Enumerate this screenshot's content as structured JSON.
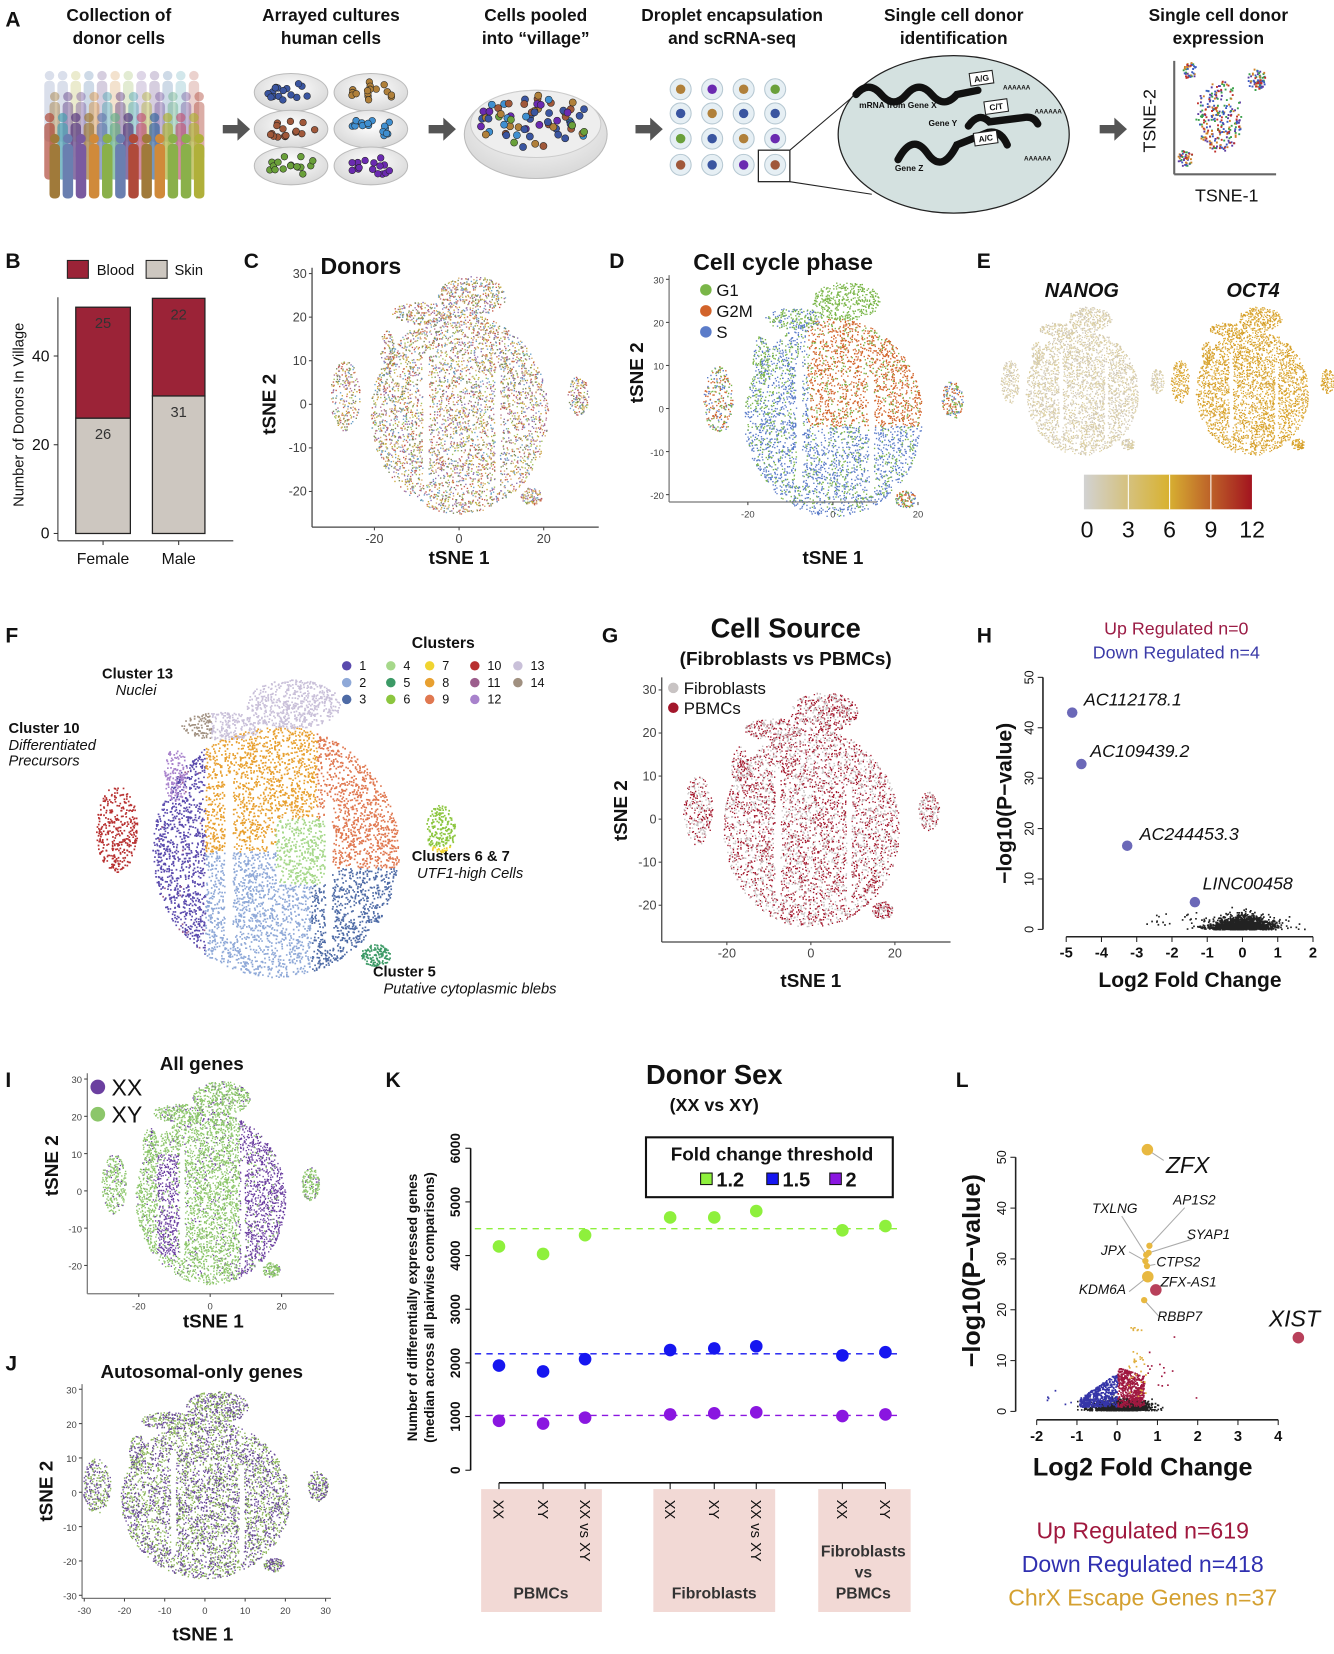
{
  "panel_labels": {
    "A": "A",
    "B": "B",
    "C": "C",
    "D": "D",
    "E": "E",
    "F": "F",
    "G": "G",
    "H": "H",
    "I": "I",
    "J": "J",
    "K": "K",
    "L": "L"
  },
  "panel_a": {
    "steps": [
      [
        "Collection of",
        "donor cells"
      ],
      [
        "Arrayed cultures",
        "human cells"
      ],
      [
        "Cells pooled",
        "into “village”"
      ],
      [
        "Droplet encapsulation",
        "and scRNA-seq"
      ],
      [
        "Single cell donor",
        "identification"
      ],
      [
        "Single cell donor",
        "expression"
      ]
    ],
    "gene_labels": [
      "mRNA from Gene X",
      "Gene Y",
      "Gene Z"
    ],
    "alleles": [
      "A/G",
      "C/T",
      "A/C"
    ],
    "polya": "AAAAAA",
    "tsne_xlabel": "TSNE-1",
    "tsne_ylabel": "TSNE-2"
  },
  "chart_data": [
    {
      "panel": "B",
      "type": "bar",
      "stacked": true,
      "categories": [
        "Female",
        "Male"
      ],
      "series": [
        {
          "name": "Blood",
          "values": [
            25,
            22
          ],
          "color": "#9b2337"
        },
        {
          "name": "Skin",
          "values": [
            26,
            31
          ],
          "color": "#cdc7c0"
        }
      ],
      "ylabel": "Number of Donors In Village",
      "yticks": [
        0,
        20,
        40
      ],
      "ylim": [
        0,
        53
      ],
      "legend": "top"
    },
    {
      "panel": "C",
      "type": "scatter",
      "title": "Donors",
      "xlabel": "tSNE 1",
      "ylabel": "tSNE 2",
      "xticks": [
        -20,
        0,
        20
      ],
      "yticks": [
        -20,
        -10,
        0,
        10,
        20,
        30
      ],
      "colors": [
        "#c9a93a",
        "#8a6fb0",
        "#a4c25a",
        "#c65b4a",
        "#6aa0c8",
        "#d8b070",
        "#7a8a5a",
        "#b07090"
      ]
    },
    {
      "panel": "D",
      "type": "scatter",
      "title": "Cell cycle phase",
      "xlabel": "tSNE 1",
      "ylabel": "tSNE 2",
      "xticks": [
        -20,
        0,
        20
      ],
      "yticks": [
        -20,
        -10,
        0,
        10,
        20,
        30
      ],
      "legend": [
        {
          "name": "G1",
          "color": "#7ab648"
        },
        {
          "name": "G2M",
          "color": "#d2632a"
        },
        {
          "name": "S",
          "color": "#5b7cc9"
        }
      ]
    },
    {
      "panel": "E",
      "type": "scatter",
      "genes": [
        "NANOG",
        "OCT4"
      ],
      "colorbar": {
        "ticks": [
          0,
          3,
          6,
          9,
          12
        ],
        "colors": [
          "#d2d2d2",
          "#d8b232",
          "#a3141f"
        ]
      }
    },
    {
      "panel": "F",
      "type": "scatter",
      "title": "Clusters",
      "legend": [
        {
          "name": "1",
          "color": "#5a4aad"
        },
        {
          "name": "2",
          "color": "#8fa9d8"
        },
        {
          "name": "3",
          "color": "#4e6ba6"
        },
        {
          "name": "4",
          "color": "#a6d88a"
        },
        {
          "name": "5",
          "color": "#3c9a66"
        },
        {
          "name": "6",
          "color": "#8cc63f"
        },
        {
          "name": "7",
          "color": "#f0d430"
        },
        {
          "name": "8",
          "color": "#e8a030"
        },
        {
          "name": "9",
          "color": "#e07850"
        },
        {
          "name": "10",
          "color": "#b83030"
        },
        {
          "name": "11",
          "color": "#9c5e8c"
        },
        {
          "name": "12",
          "color": "#a882cc"
        },
        {
          "name": "13",
          "color": "#c9c0d9"
        },
        {
          "name": "14",
          "color": "#a09080"
        }
      ],
      "annotations": [
        {
          "title": "Cluster 13",
          "lines": [
            "Nuclei"
          ]
        },
        {
          "title": "Cluster 10",
          "lines": [
            "Differentiated",
            "Precursors"
          ]
        },
        {
          "title": "Clusters 6 & 7",
          "lines": [
            "UTF1-high Cells"
          ]
        },
        {
          "title": "Cluster 5",
          "lines": [
            "Putative cytoplasmic blebs"
          ]
        }
      ]
    },
    {
      "panel": "G",
      "type": "scatter",
      "title": "Cell Source",
      "subtitle": "(Fibroblasts vs PBMCs)",
      "xlabel": "tSNE 1",
      "ylabel": "tSNE 2",
      "xticks": [
        -20,
        0,
        20
      ],
      "yticks": [
        -20,
        -10,
        0,
        10,
        20,
        30
      ],
      "legend": [
        {
          "name": "Fibroblasts",
          "color": "#c8c3c3"
        },
        {
          "name": "PBMCs",
          "color": "#a3162b"
        }
      ]
    },
    {
      "panel": "H",
      "type": "scatter",
      "counts": [
        {
          "text": "Up Regulated n=0",
          "color": "#9b1c45"
        },
        {
          "text": "Down Regulated n=4",
          "color": "#3b3ba8"
        }
      ],
      "xlabel": "Log2 Fold Change",
      "ylabel": "−log10(P−value)",
      "xticks": [
        -5,
        -4,
        -3,
        -2,
        -1,
        0,
        1,
        2
      ],
      "yticks": [
        0,
        10,
        20,
        30,
        40,
        50
      ],
      "xlim": [
        -5,
        2
      ],
      "ylim": [
        0,
        50
      ],
      "labeled_points": [
        {
          "gene": "AC112178.1",
          "x": -4.83,
          "y": 43,
          "color": "#6b68b8"
        },
        {
          "gene": "AC109439.2",
          "x": -4.57,
          "y": 32.8,
          "color": "#6b68b8"
        },
        {
          "gene": "AC244453.3",
          "x": -3.27,
          "y": 16.6,
          "color": "#6b68b8"
        },
        {
          "gene": "LINC00458",
          "x": -1.35,
          "y": 5.4,
          "color": "#6b68b8"
        }
      ]
    },
    {
      "panel": "I",
      "type": "scatter",
      "title": "All genes",
      "xlabel": "tSNE 1",
      "ylabel": "tSNE 2",
      "xticks": [
        -20,
        0,
        20
      ],
      "yticks": [
        -20,
        -10,
        0,
        10,
        20,
        30
      ],
      "legend": [
        {
          "name": "XX",
          "color": "#6b3fa0"
        },
        {
          "name": "XY",
          "color": "#8cc66a"
        }
      ]
    },
    {
      "panel": "J",
      "type": "scatter",
      "title": "Autosomal-only genes",
      "xlabel": "tSNE 1",
      "ylabel": "tSNE 2",
      "xticks": [
        -30,
        -20,
        -10,
        0,
        10,
        20,
        30
      ],
      "yticks": [
        -30,
        -20,
        -10,
        0,
        10,
        20,
        30
      ]
    },
    {
      "panel": "K",
      "type": "scatter",
      "title": "Donor Sex",
      "subtitle": "(XX vs XY)",
      "ylabel": [
        "Number of differentially expressed genes",
        "(median across all pairwise comparisons)"
      ],
      "yticks": [
        0,
        1000,
        2000,
        3000,
        4000,
        5000,
        6000
      ],
      "ylim": [
        0,
        6000
      ],
      "legend_title": "Fold change threshold",
      "legend": "top-right",
      "categories": [
        "XX",
        "XY",
        "XX vs XY",
        "XX",
        "XY",
        "XX vs XY",
        "XX",
        "XY"
      ],
      "groups": [
        {
          "lines": [
            "PBMCs"
          ]
        },
        {
          "lines": [
            "Fibroblasts"
          ]
        },
        {
          "lines": [
            "Fibroblasts",
            "vs",
            "PBMCs"
          ]
        }
      ],
      "series": [
        {
          "name": "1.2",
          "color": "#8ef03c",
          "values": [
            4170,
            4030,
            4380,
            4710,
            4710,
            4830,
            4470,
            4550
          ],
          "reference_line": 4500
        },
        {
          "name": "1.5",
          "color": "#1616f0",
          "values": [
            1950,
            1840,
            2070,
            2240,
            2270,
            2310,
            2140,
            2200
          ],
          "reference_line": 2170
        },
        {
          "name": "2",
          "color": "#8a16e0",
          "values": [
            920,
            870,
            980,
            1040,
            1060,
            1080,
            1010,
            1040
          ],
          "reference_line": 1020
        }
      ]
    },
    {
      "panel": "L",
      "type": "scatter",
      "xlabel": "Log2 Fold Change",
      "ylabel": "−log10(P−value)",
      "xticks": [
        -2,
        -1,
        0,
        1,
        2,
        3,
        4
      ],
      "yticks": [
        0,
        10,
        20,
        30,
        40,
        50
      ],
      "labeled_points": [
        {
          "gene": "ZFX",
          "x": 0.75,
          "y": 51.5,
          "color": "#e8b840"
        },
        {
          "gene": "TXLNG",
          "x": 0.72,
          "y": 30.8,
          "color": "#e8b840"
        },
        {
          "gene": "AP1S2",
          "x": 0.8,
          "y": 32.6,
          "color": "#e8b840"
        },
        {
          "gene": "SYAP1",
          "x": 0.78,
          "y": 31.2,
          "color": "#e8b840"
        },
        {
          "gene": "JPX",
          "x": 0.7,
          "y": 29.6,
          "color": "#e8b840"
        },
        {
          "gene": "CTPS2",
          "x": 0.74,
          "y": 28.6,
          "color": "#e8b840"
        },
        {
          "gene": "ZFX-AS1",
          "x": 0.96,
          "y": 23.9,
          "color": "#b8405a"
        },
        {
          "gene": "KDM6A",
          "x": 0.76,
          "y": 26.5,
          "color": "#e8b840"
        },
        {
          "gene": "RBBP7",
          "x": 0.67,
          "y": 21.9,
          "color": "#e8b840"
        },
        {
          "gene": "XIST",
          "x": 4.5,
          "y": 14.5,
          "color": "#b8405a"
        }
      ],
      "counts": [
        {
          "text": "Up Regulated n=619",
          "color": "#a0183e"
        },
        {
          "text": "Down Regulated n=418",
          "color": "#3030b0"
        },
        {
          "text": "ChrX Escape Genes n=37",
          "color": "#d4a030"
        }
      ]
    }
  ]
}
